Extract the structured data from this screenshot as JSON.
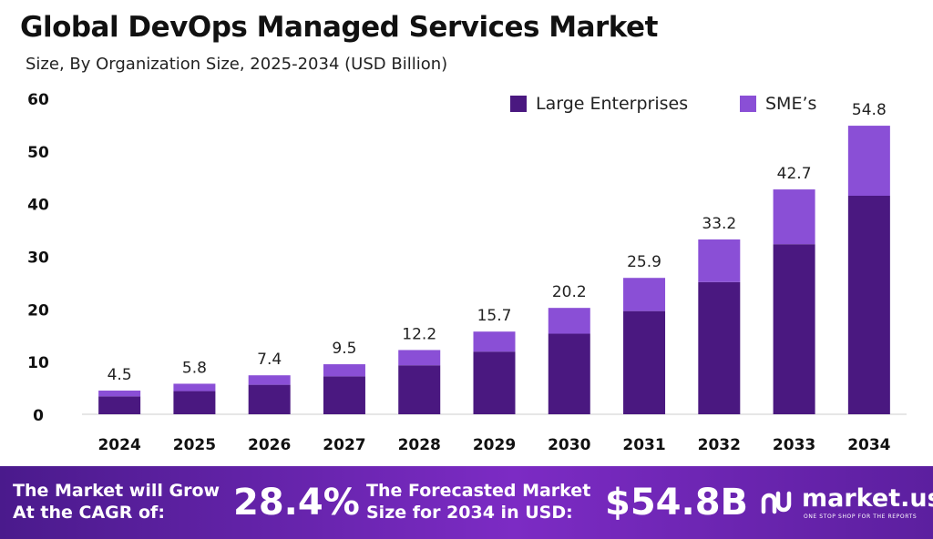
{
  "title": "Global DevOps Managed Services Market",
  "subtitle": "Size, By Organization Size, 2025-2034 (USD Billion)",
  "colors": {
    "large": "#4a1880",
    "sme": "#8a4fd6",
    "footer_start": "#4a1a8c",
    "footer_end": "#7c2bc4"
  },
  "legend": {
    "large": "Large Enterprises",
    "sme": "SME’s"
  },
  "chart_data": {
    "type": "bar",
    "stacked": true,
    "categories": [
      "2024",
      "2025",
      "2026",
      "2027",
      "2028",
      "2029",
      "2030",
      "2031",
      "2032",
      "2033",
      "2034"
    ],
    "series": [
      {
        "name": "Large Enterprises",
        "values": [
          3.4,
          4.4,
          5.6,
          7.2,
          9.3,
          11.9,
          15.3,
          19.6,
          25.1,
          32.3,
          41.5
        ]
      },
      {
        "name": "SME’s",
        "values": [
          1.1,
          1.4,
          1.8,
          2.3,
          2.9,
          3.8,
          4.9,
          6.3,
          8.1,
          10.4,
          13.3
        ]
      }
    ],
    "totals": [
      "4.5",
      "5.8",
      "7.4",
      "9.5",
      "12.2",
      "15.7",
      "20.2",
      "25.9",
      "33.2",
      "42.7",
      "54.8"
    ],
    "yticks": [
      0,
      10,
      20,
      30,
      40,
      50,
      60
    ],
    "ylim": [
      0,
      60
    ],
    "grid": false,
    "legend_position": "top-right"
  },
  "footer": {
    "cagr_label_line1": "The Market will Grow",
    "cagr_label_line2": "At the CAGR of:",
    "cagr_value": "28.4%",
    "forecast_label_line1": "The Forecasted Market",
    "forecast_label_line2": "Size for 2034 in USD:",
    "forecast_value": "$54.8B",
    "brand_name": "market.us",
    "brand_tagline": "ONE STOP SHOP FOR THE REPORTS"
  }
}
